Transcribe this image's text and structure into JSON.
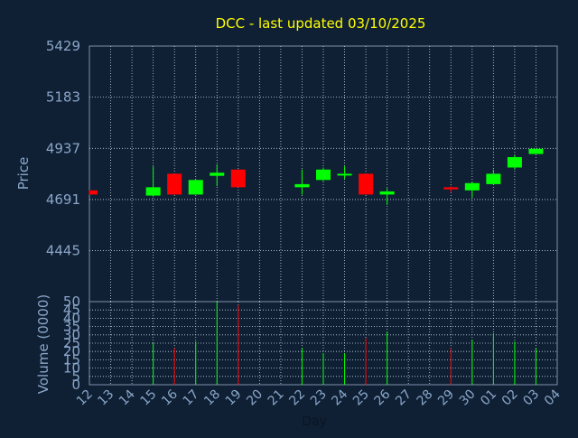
{
  "chart_data": {
    "type": "candlestick",
    "title": "DCC - last updated 03/10/2025",
    "ylabel": "Price",
    "volume_ylabel": "Volume (0000)",
    "xlabel": "Day",
    "price_ticks": [
      "5429",
      "5183",
      "4937",
      "4691",
      "4445"
    ],
    "price_tick_values": [
      5429,
      5183,
      4937,
      4691,
      4445
    ],
    "ylim": [
      4200,
      5429
    ],
    "volume_ticks": [
      "50",
      "45",
      "40",
      "35",
      "30",
      "25",
      "20",
      "15",
      "10",
      "5",
      "0"
    ],
    "volume_tick_values": [
      50,
      45,
      40,
      35,
      30,
      25,
      20,
      15,
      10,
      5,
      0
    ],
    "volume_ylim": [
      0,
      50
    ],
    "x_ticks": [
      "12",
      "13",
      "14",
      "15",
      "16",
      "17",
      "18",
      "19",
      "20",
      "21",
      "22",
      "23",
      "24",
      "25",
      "26",
      "27",
      "28",
      "29",
      "30",
      "01",
      "02",
      "03",
      "04"
    ],
    "grid": true,
    "colors": {
      "background": "#0f2035",
      "frame": "#7f8fa6",
      "grid": "#c8d2e0",
      "up": "#00ff00",
      "down": "#ff0000",
      "title": "#ffff00",
      "axis_text": "#8aa6c8"
    },
    "candles": [
      {
        "x": 0,
        "open": 4735,
        "high": 4735,
        "low": 4715,
        "close": 4715
      },
      {
        "x": 3,
        "open": 4710,
        "high": 4850,
        "low": 4705,
        "close": 4750
      },
      {
        "x": 4,
        "open": 4815,
        "high": 4815,
        "low": 4715,
        "close": 4715
      },
      {
        "x": 5,
        "open": 4715,
        "high": 4785,
        "low": 4715,
        "close": 4785
      },
      {
        "x": 6,
        "open": 4805,
        "high": 4860,
        "low": 4755,
        "close": 4820
      },
      {
        "x": 7,
        "open": 4835,
        "high": 4835,
        "low": 4750,
        "close": 4750
      },
      {
        "x": 10,
        "open": 4750,
        "high": 4835,
        "low": 4715,
        "close": 4765
      },
      {
        "x": 11,
        "open": 4785,
        "high": 4845,
        "low": 4780,
        "close": 4835
      },
      {
        "x": 12,
        "open": 4810,
        "high": 4850,
        "low": 4790,
        "close": 4815
      },
      {
        "x": 13,
        "open": 4815,
        "high": 4815,
        "low": 4715,
        "close": 4715
      },
      {
        "x": 14,
        "open": 4715,
        "high": 4745,
        "low": 4665,
        "close": 4730
      },
      {
        "x": 17,
        "open": 4750,
        "high": 4755,
        "low": 4725,
        "close": 4740
      },
      {
        "x": 18,
        "open": 4735,
        "high": 4775,
        "low": 4700,
        "close": 4770
      },
      {
        "x": 19,
        "open": 4765,
        "high": 4835,
        "low": 4765,
        "close": 4815
      },
      {
        "x": 20,
        "open": 4845,
        "high": 4905,
        "low": 4835,
        "close": 4895
      },
      {
        "x": 21,
        "open": 4910,
        "high": 4935,
        "low": 4910,
        "close": 4935
      }
    ],
    "volumes": [
      {
        "x": 0,
        "value": 0,
        "dir": "down"
      },
      {
        "x": 3,
        "value": 25,
        "dir": "up"
      },
      {
        "x": 4,
        "value": 22,
        "dir": "down"
      },
      {
        "x": 5,
        "value": 26,
        "dir": "up"
      },
      {
        "x": 6,
        "value": 50,
        "dir": "up"
      },
      {
        "x": 7,
        "value": 48,
        "dir": "down"
      },
      {
        "x": 10,
        "value": 22,
        "dir": "up"
      },
      {
        "x": 11,
        "value": 19,
        "dir": "up"
      },
      {
        "x": 12,
        "value": 19,
        "dir": "up"
      },
      {
        "x": 13,
        "value": 28,
        "dir": "down"
      },
      {
        "x": 14,
        "value": 32,
        "dir": "up"
      },
      {
        "x": 17,
        "value": 22,
        "dir": "down"
      },
      {
        "x": 18,
        "value": 27,
        "dir": "up"
      },
      {
        "x": 19,
        "value": 31,
        "dir": "up"
      },
      {
        "x": 20,
        "value": 26,
        "dir": "up"
      },
      {
        "x": 21,
        "value": 22,
        "dir": "up"
      }
    ]
  }
}
